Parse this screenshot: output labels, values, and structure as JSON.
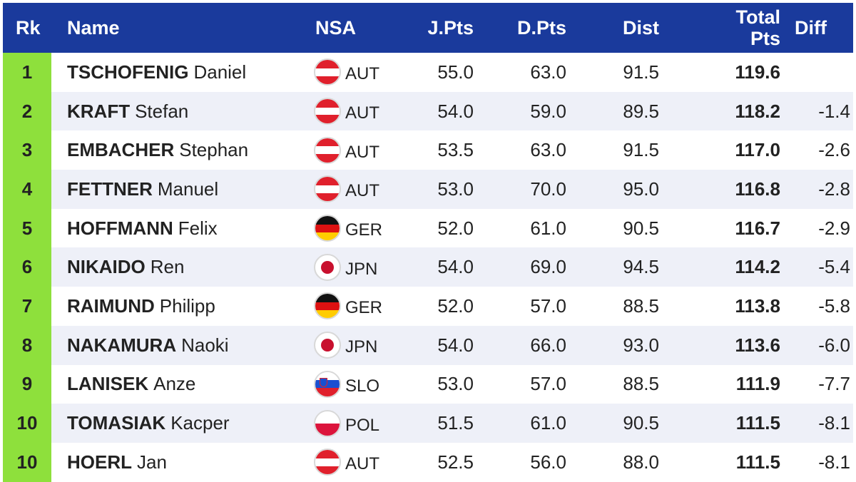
{
  "headers": {
    "rk": "Rk",
    "name": "Name",
    "nsa": "NSA",
    "jpts": "J.Pts",
    "dpts": "D.Pts",
    "dist": "Dist",
    "total_line1": "Total",
    "total_line2": "Pts",
    "diff": "Diff"
  },
  "colors": {
    "header_bg": "#1a3a9c",
    "rank_bg": "#8ee03c",
    "alt_row_bg": "#eef0f8"
  },
  "rows": [
    {
      "rk": "1",
      "last": "TSCHOFENIG",
      "first": "Daniel",
      "flag": "aut-flag-icon",
      "nsa": "AUT",
      "jpts": "55.0",
      "dpts": "63.0",
      "dist": "91.5",
      "total": "119.6",
      "diff": ""
    },
    {
      "rk": "2",
      "last": "KRAFT",
      "first": "Stefan",
      "flag": "aut-flag-icon",
      "nsa": "AUT",
      "jpts": "54.0",
      "dpts": "59.0",
      "dist": "89.5",
      "total": "118.2",
      "diff": "-1.4"
    },
    {
      "rk": "3",
      "last": "EMBACHER",
      "first": "Stephan",
      "flag": "aut-flag-icon",
      "nsa": "AUT",
      "jpts": "53.5",
      "dpts": "63.0",
      "dist": "91.5",
      "total": "117.0",
      "diff": "-2.6"
    },
    {
      "rk": "4",
      "last": "FETTNER",
      "first": "Manuel",
      "flag": "aut-flag-icon",
      "nsa": "AUT",
      "jpts": "53.0",
      "dpts": "70.0",
      "dist": "95.0",
      "total": "116.8",
      "diff": "-2.8"
    },
    {
      "rk": "5",
      "last": "HOFFMANN",
      "first": "Felix",
      "flag": "ger-flag-icon",
      "nsa": "GER",
      "jpts": "52.0",
      "dpts": "61.0",
      "dist": "90.5",
      "total": "116.7",
      "diff": "-2.9"
    },
    {
      "rk": "6",
      "last": "NIKAIDO",
      "first": "Ren",
      "flag": "jpn-flag-icon",
      "nsa": "JPN",
      "jpts": "54.0",
      "dpts": "69.0",
      "dist": "94.5",
      "total": "114.2",
      "diff": "-5.4"
    },
    {
      "rk": "7",
      "last": "RAIMUND",
      "first": "Philipp",
      "flag": "ger-flag-icon",
      "nsa": "GER",
      "jpts": "52.0",
      "dpts": "57.0",
      "dist": "88.5",
      "total": "113.8",
      "diff": "-5.8"
    },
    {
      "rk": "8",
      "last": "NAKAMURA",
      "first": "Naoki",
      "flag": "jpn-flag-icon",
      "nsa": "JPN",
      "jpts": "54.0",
      "dpts": "66.0",
      "dist": "93.0",
      "total": "113.6",
      "diff": "-6.0"
    },
    {
      "rk": "9",
      "last": "LANISEK",
      "first": "Anze",
      "flag": "slo-flag-icon",
      "nsa": "SLO",
      "jpts": "53.0",
      "dpts": "57.0",
      "dist": "88.5",
      "total": "111.9",
      "diff": "-7.7"
    },
    {
      "rk": "10",
      "last": "TOMASIAK",
      "first": "Kacper",
      "flag": "pol-flag-icon",
      "nsa": "POL",
      "jpts": "51.5",
      "dpts": "61.0",
      "dist": "90.5",
      "total": "111.5",
      "diff": "-8.1"
    },
    {
      "rk": "10",
      "last": "HOERL",
      "first": "Jan",
      "flag": "aut-flag-icon",
      "nsa": "AUT",
      "jpts": "52.5",
      "dpts": "56.0",
      "dist": "88.0",
      "total": "111.5",
      "diff": "-8.1"
    }
  ]
}
